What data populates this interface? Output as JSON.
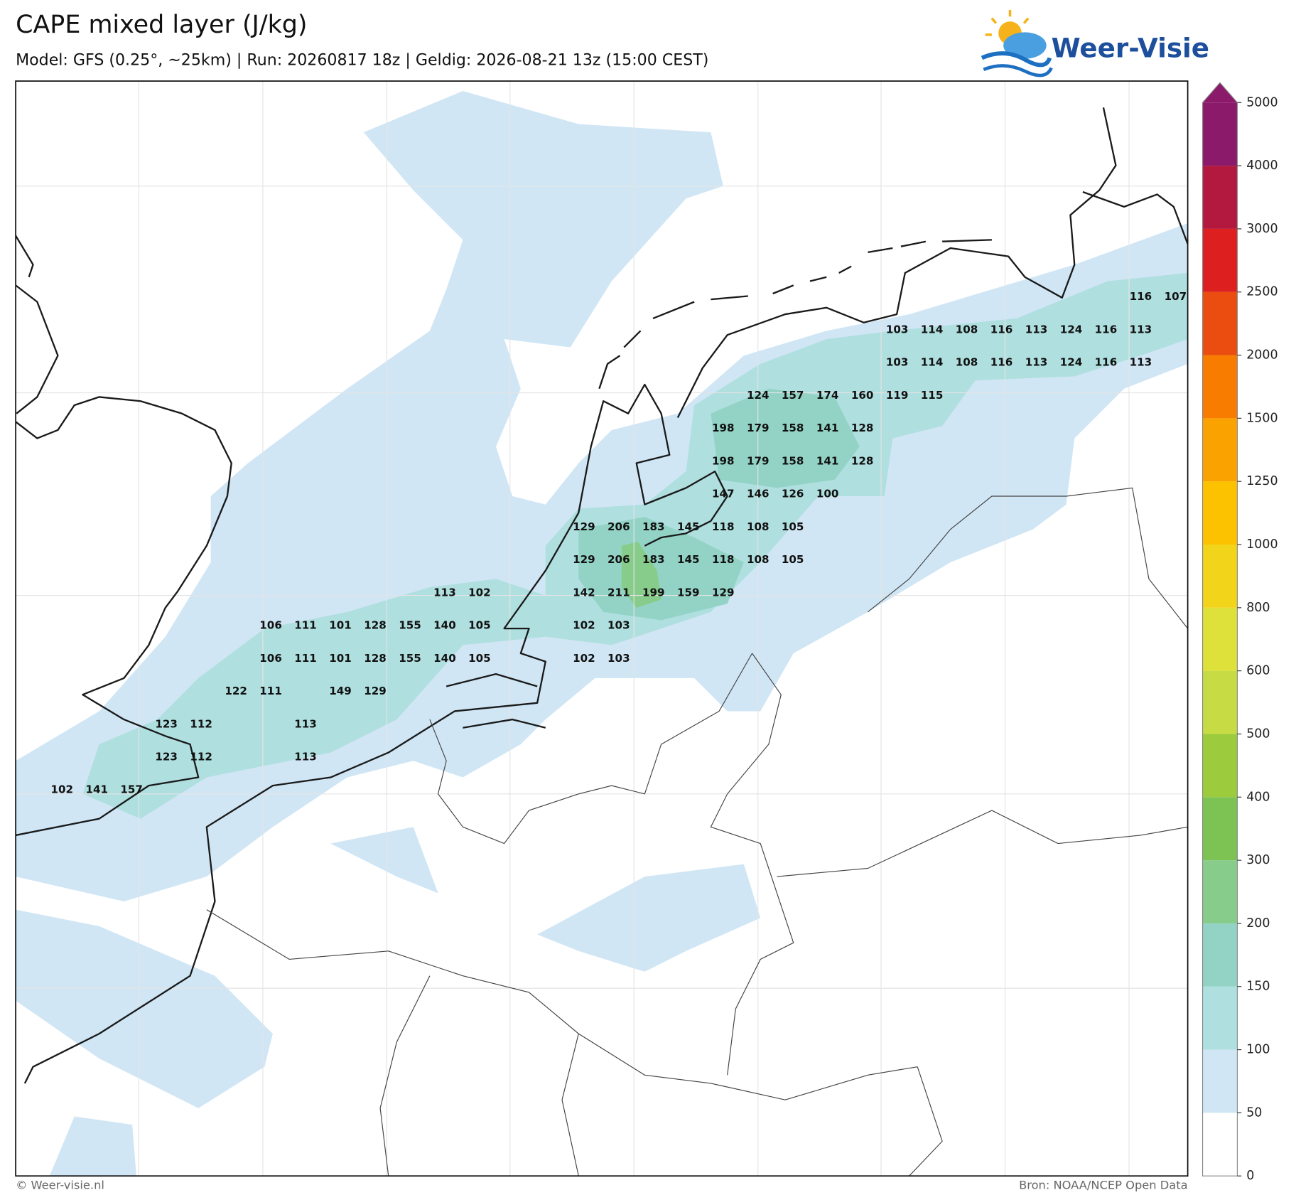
{
  "header": {
    "title": "CAPE mixed layer (J/kg)",
    "subtitle": "Model: GFS (0.25°, ~25km)  |  Run: 20260817 18z  |  Geldig: 2026-08-21 13z (15:00 CEST)"
  },
  "logo": "Weer-Visie",
  "colorbar": {
    "ticks": [
      0,
      50,
      100,
      150,
      200,
      300,
      400,
      500,
      600,
      800,
      1000,
      1250,
      1500,
      2000,
      2500,
      3000,
      4000,
      5000
    ],
    "colors": [
      "#ffffff",
      "#d0e6f5",
      "#b0dfe0",
      "#93d3c6",
      "#88cc8c",
      "#7cc353",
      "#9ccc3e",
      "#c6db44",
      "#dee13a",
      "#f2d41a",
      "#fcc200",
      "#faa300",
      "#f77c00",
      "#eb4d10",
      "#dd1f1f",
      "#b3193f",
      "#8c1a6b"
    ],
    "extend_color": "#8c1a6b"
  },
  "labels": {
    "rows": [
      [
        null,
        null,
        null,
        null,
        null,
        null,
        null,
        null,
        null,
        null,
        null,
        null,
        null,
        null,
        null,
        null,
        null,
        null,
        null,
        null,
        null,
        null,
        null,
        null,
        null,
        null,
        null,
        null,
        null,
        null,
        null,
        116,
        107
      ],
      [
        null,
        null,
        null,
        null,
        null,
        null,
        null,
        null,
        null,
        null,
        null,
        null,
        null,
        null,
        null,
        null,
        null,
        null,
        null,
        null,
        null,
        null,
        null,
        null,
        103,
        114,
        108,
        116,
        113,
        124,
        116,
        113
      ],
      [
        null,
        null,
        null,
        null,
        null,
        null,
        null,
        null,
        null,
        null,
        null,
        null,
        null,
        null,
        null,
        null,
        null,
        null,
        null,
        null,
        null,
        null,
        null,
        null,
        103,
        114,
        108,
        116,
        113,
        124,
        116,
        113
      ],
      [
        null,
        null,
        null,
        null,
        null,
        null,
        null,
        null,
        null,
        null,
        null,
        null,
        null,
        null,
        null,
        null,
        null,
        null,
        null,
        null,
        124,
        157,
        174,
        160,
        119,
        115
      ],
      [
        null,
        null,
        null,
        null,
        null,
        null,
        null,
        null,
        null,
        null,
        null,
        null,
        null,
        null,
        null,
        null,
        null,
        null,
        null,
        198,
        179,
        158,
        141,
        128
      ],
      [
        null,
        null,
        null,
        null,
        null,
        null,
        null,
        null,
        null,
        null,
        null,
        null,
        null,
        null,
        null,
        null,
        null,
        null,
        null,
        198,
        179,
        158,
        141,
        128
      ],
      [
        null,
        null,
        null,
        null,
        null,
        null,
        null,
        null,
        null,
        null,
        null,
        null,
        null,
        null,
        null,
        null,
        null,
        null,
        null,
        147,
        146,
        126,
        100
      ],
      [
        null,
        null,
        null,
        null,
        null,
        null,
        null,
        null,
        null,
        null,
        null,
        null,
        null,
        null,
        null,
        129,
        206,
        183,
        145,
        118,
        108,
        105
      ],
      [
        null,
        null,
        null,
        null,
        null,
        null,
        null,
        null,
        null,
        null,
        null,
        null,
        null,
        null,
        null,
        129,
        206,
        183,
        145,
        118,
        108,
        105
      ],
      [
        null,
        null,
        null,
        null,
        null,
        null,
        null,
        null,
        null,
        null,
        null,
        113,
        102,
        null,
        null,
        142,
        211,
        199,
        159,
        129
      ],
      [
        null,
        null,
        null,
        null,
        null,
        null,
        106,
        111,
        101,
        128,
        155,
        140,
        105,
        null,
        null,
        102,
        103
      ],
      [
        null,
        null,
        null,
        null,
        null,
        null,
        106,
        111,
        101,
        128,
        155,
        140,
        105,
        null,
        null,
        102,
        103
      ],
      [
        null,
        null,
        null,
        null,
        null,
        122,
        111,
        null,
        149,
        129
      ],
      [
        null,
        null,
        null,
        123,
        112,
        null,
        null,
        113
      ],
      [
        null,
        null,
        null,
        123,
        112,
        null,
        null,
        113
      ],
      [
        102,
        141,
        157
      ]
    ]
  },
  "footer": {
    "left": "© Weer-visie.nl",
    "right": "Bron: NOAA/NCEP Open Data"
  }
}
